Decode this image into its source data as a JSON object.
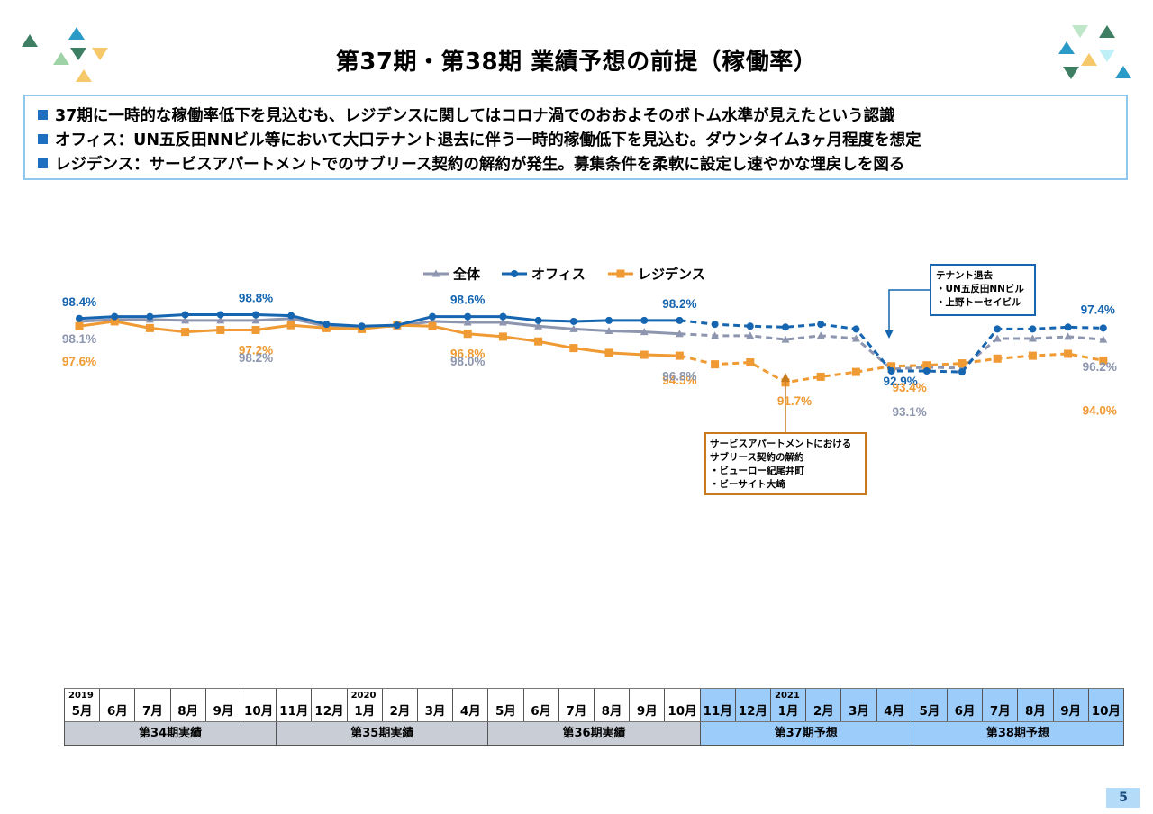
{
  "page_title": "第37期・第38期 業績予想の前提（稼働率）",
  "bullets": [
    "37期に一時的な稼働率低下を見込むも、レジデンスに関してはコロナ渦でのおおよそのボトム水準が見えたという認識",
    "オフィス：UN五反田NNビル等において大口テナント退去に伴う一時的稼働低下を見込む。ダウンタイム3ヶ月程度を想定",
    "レジデンス：サービスアパートメントでのサブリース契約の解約が発生。募集条件を柔軟に設定し速やかな埋戻しを図る"
  ],
  "colors": {
    "all": "#8d96ae",
    "office": "#1565b0",
    "residence": "#ef9a32",
    "actual_bg": "#c9ced6",
    "forecast_bg": "#9ccdfa",
    "accent_border": "#8fc7ee"
  },
  "chart_data": {
    "type": "line",
    "x": [
      "2019-05",
      "2019-06",
      "2019-07",
      "2019-08",
      "2019-09",
      "2019-10",
      "2019-11",
      "2019-12",
      "2020-01",
      "2020-02",
      "2020-03",
      "2020-04",
      "2020-05",
      "2020-06",
      "2020-07",
      "2020-08",
      "2020-09",
      "2020-10",
      "2020-11",
      "2020-12",
      "2021-01",
      "2021-02",
      "2021-03",
      "2021-04",
      "2021-05",
      "2021-06",
      "2021-07",
      "2021-08",
      "2021-09",
      "2021-10"
    ],
    "forecast_from_index": 17,
    "ylim": [
      60,
      100
    ],
    "series": [
      {
        "name": "全体",
        "key": "all",
        "values": [
          98.1,
          98.3,
          98.3,
          98.2,
          98.2,
          98.2,
          98.4,
          97.6,
          97.5,
          97.6,
          98.1,
          98.0,
          98.0,
          97.6,
          97.3,
          97.1,
          97.0,
          96.8,
          96.6,
          96.6,
          96.2,
          96.6,
          96.3,
          93.1,
          93.3,
          93.2,
          96.3,
          96.3,
          96.5,
          96.2
        ]
      },
      {
        "name": "オフィス",
        "key": "office",
        "values": [
          98.4,
          98.6,
          98.6,
          98.8,
          98.8,
          98.8,
          98.7,
          97.8,
          97.6,
          97.7,
          98.6,
          98.6,
          98.6,
          98.2,
          98.1,
          98.2,
          98.2,
          98.2,
          97.8,
          97.6,
          97.5,
          97.8,
          97.3,
          92.9,
          92.9,
          92.8,
          97.3,
          97.3,
          97.5,
          97.4
        ]
      },
      {
        "name": "レジデンス",
        "key": "residence",
        "values": [
          97.6,
          98.1,
          97.4,
          97.0,
          97.2,
          97.2,
          97.7,
          97.4,
          97.3,
          97.7,
          97.6,
          96.8,
          96.5,
          96.0,
          95.3,
          94.8,
          94.6,
          94.5,
          93.6,
          93.8,
          91.7,
          92.3,
          92.8,
          93.4,
          93.5,
          93.7,
          94.2,
          94.5,
          94.7,
          94.0
        ]
      }
    ],
    "data_labels": [
      {
        "series": "office",
        "index": 0,
        "text": "98.4%"
      },
      {
        "series": "all",
        "index": 0,
        "text": "98.1%"
      },
      {
        "series": "residence",
        "index": 0,
        "text": "97.6%"
      },
      {
        "series": "office",
        "index": 5,
        "text": "98.8%"
      },
      {
        "series": "residence",
        "index": 5,
        "text": "97.2%"
      },
      {
        "series": "all",
        "index": 5,
        "text": "98.2%"
      },
      {
        "series": "office",
        "index": 11,
        "text": "98.6%"
      },
      {
        "series": "residence",
        "index": 11,
        "text": "96.8%"
      },
      {
        "series": "all",
        "index": 11,
        "text": "98.0%"
      },
      {
        "series": "office",
        "index": 17,
        "text": "98.2%"
      },
      {
        "series": "residence",
        "index": 17,
        "text": "94.5%"
      },
      {
        "series": "all",
        "index": 17,
        "text": "96.8%"
      },
      {
        "series": "residence",
        "index": 20,
        "text": "91.7%"
      },
      {
        "series": "office",
        "index": 23,
        "text": "92.9%"
      },
      {
        "series": "residence",
        "index": 23,
        "text": "93.4%"
      },
      {
        "series": "all",
        "index": 23,
        "text": "93.1%"
      },
      {
        "series": "office",
        "index": 29,
        "text": "97.4%"
      },
      {
        "series": "all",
        "index": 29,
        "text": "96.2%"
      },
      {
        "series": "residence",
        "index": 29,
        "text": "94.0%"
      }
    ],
    "annotations": [
      {
        "lines": [
          "テナント退去",
          "・UN五反田NNビル",
          "・上野トーセイビル"
        ],
        "series": "office",
        "index": 23
      },
      {
        "lines": [
          "サービスアパートメントにおける",
          "サブリース契約の解約",
          "・ビューロー紀尾井町",
          "・ビーサイト大崎"
        ],
        "series": "residence",
        "index": 20
      }
    ]
  },
  "timeline": {
    "years": [
      {
        "index": 0,
        "label": "2019"
      },
      {
        "index": 8,
        "label": "2020"
      },
      {
        "index": 20,
        "label": "2021"
      }
    ],
    "months": [
      "5月",
      "6月",
      "7月",
      "8月",
      "9月",
      "10月",
      "11月",
      "12月",
      "1月",
      "2月",
      "3月",
      "4月",
      "5月",
      "6月",
      "7月",
      "8月",
      "9月",
      "10月",
      "11月",
      "12月",
      "1月",
      "2月",
      "3月",
      "4月",
      "5月",
      "6月",
      "7月",
      "8月",
      "9月",
      "10月"
    ],
    "periods": [
      {
        "label": "第34期実績",
        "start": 0,
        "count": 6,
        "forecast": false
      },
      {
        "label": "第35期実績",
        "start": 6,
        "count": 6,
        "forecast": false
      },
      {
        "label": "第36期実績",
        "start": 12,
        "count": 6,
        "forecast": false
      },
      {
        "label": "第37期予想",
        "start": 18,
        "count": 6,
        "forecast": true
      },
      {
        "label": "第38期予想",
        "start": 24,
        "count": 6,
        "forecast": true
      }
    ]
  },
  "page_number": "5"
}
